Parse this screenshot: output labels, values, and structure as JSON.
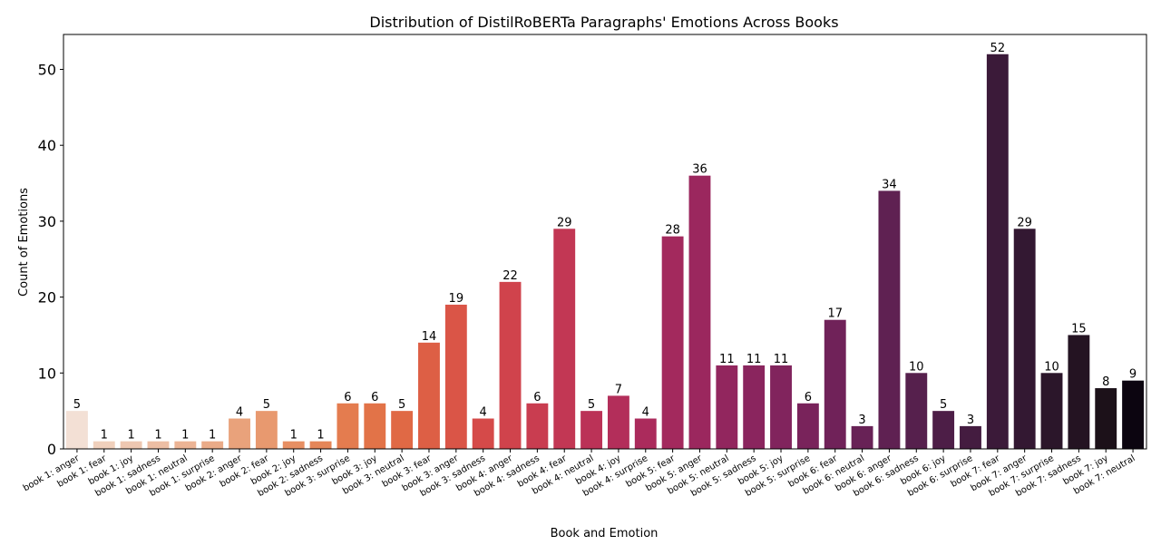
{
  "chart_data": {
    "type": "bar",
    "title": "Distribution of DistilRoBERTa Paragraphs' Emotions Across Books",
    "xlabel": "Book and Emotion",
    "ylabel": "Count of Emotions",
    "ylim": [
      0,
      54.6
    ],
    "yticks": [
      0,
      10,
      20,
      30,
      40,
      50
    ],
    "grid": false,
    "categories": [
      "book 1: anger",
      "book 1: fear",
      "book 1: joy",
      "book 1: sadness",
      "book 1: neutral",
      "book 1: surprise",
      "book 2: anger",
      "book 2: fear",
      "book 2: joy",
      "book 2: sadness",
      "book 3: surprise",
      "book 3: joy",
      "book 3: neutral",
      "book 3: fear",
      "book 3: anger",
      "book 3: sadness",
      "book 4: anger",
      "book 4: sadness",
      "book 4: fear",
      "book 4: neutral",
      "book 4: joy",
      "book 4: surprise",
      "book 5: fear",
      "book 5: anger",
      "book 5: neutral",
      "book 5: sadness",
      "book 5: joy",
      "book 5: surprise",
      "book 6: fear",
      "book 6: neutral",
      "book 6: anger",
      "book 6: sadness",
      "book 6: joy",
      "book 6: surprise",
      "book 7: fear",
      "book 7: anger",
      "book 7: surprise",
      "book 7: sadness",
      "book 7: joy",
      "book 7: neutral"
    ],
    "values": [
      5,
      1,
      1,
      1,
      1,
      1,
      4,
      5,
      1,
      1,
      6,
      6,
      5,
      14,
      19,
      4,
      22,
      6,
      29,
      5,
      7,
      4,
      28,
      36,
      11,
      11,
      11,
      6,
      17,
      3,
      34,
      10,
      5,
      3,
      52,
      29,
      10,
      15,
      8,
      9
    ],
    "data_labels": [
      "5",
      "1",
      "1",
      "1",
      "1",
      "1",
      "4",
      "5",
      "1",
      "1",
      "6",
      "6",
      "5",
      "14",
      "19",
      "4",
      "22",
      "6",
      "29",
      "5",
      "7",
      "4",
      "28",
      "36",
      "11",
      "11",
      "11",
      "6",
      "17",
      "3",
      "34",
      "10",
      "5",
      "3",
      "52",
      "29",
      "10",
      "15",
      "8",
      "9"
    ],
    "colors": [
      "#f3e0d5",
      "#f0d0bc",
      "#eec7b1",
      "#edbea4",
      "#ecb495",
      "#eaab88",
      "#e9a27b",
      "#e8996f",
      "#e78f63",
      "#e58658",
      "#e47c4f",
      "#e27348",
      "#e06945",
      "#dd5f45",
      "#da5547",
      "#d54a49",
      "#d0434c",
      "#c93d50",
      "#c23754",
      "#bb3257",
      "#b32e5a",
      "#ab2b5c",
      "#a3295d",
      "#9b275e",
      "#92265e",
      "#8a255e",
      "#81245d",
      "#79235b",
      "#702259",
      "#682256",
      "#5f2152",
      "#56204d",
      "#4d1e47",
      "#441c40",
      "#3b1a39",
      "#331832",
      "#2b162a",
      "#241322",
      "#1c1119",
      "#0c0510"
    ]
  }
}
